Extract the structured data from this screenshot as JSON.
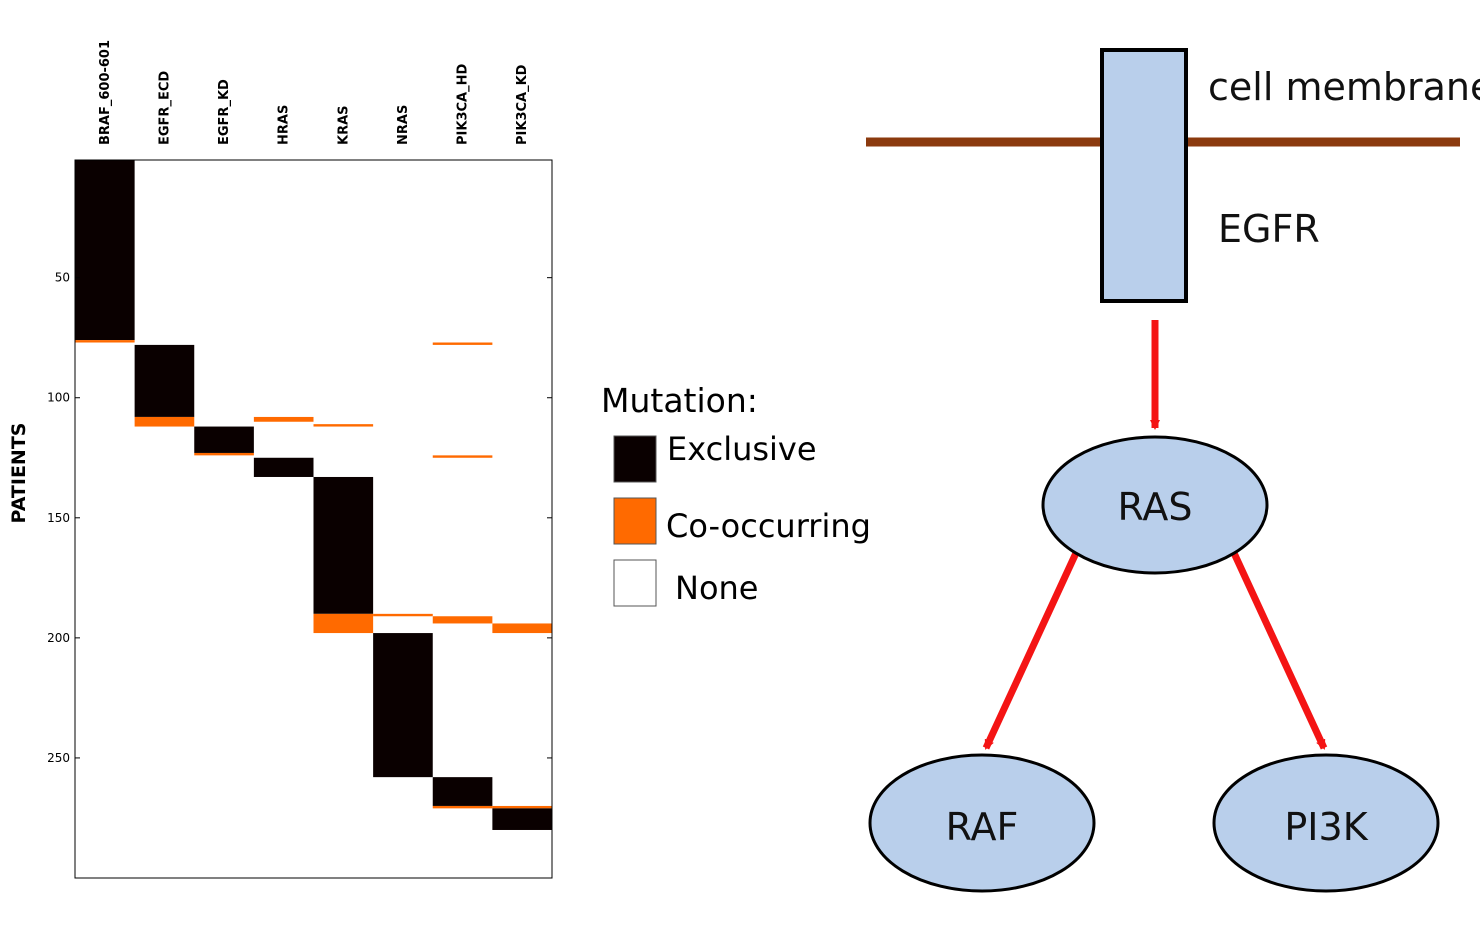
{
  "heatmap": {
    "genes": [
      "BRAF_600-601",
      "EGFR_ECD",
      "EGFR_KD",
      "HRAS",
      "KRAS",
      "NRAS",
      "PIK3CA_HD",
      "PIK3CA_KD"
    ],
    "y_axis_label": "PATIENTS",
    "y_ticks": [
      50,
      100,
      150,
      200,
      250
    ],
    "y_range": [
      1,
      300
    ],
    "colors": {
      "exclusive": "#0a0000",
      "co_occurring": "#ff6a00",
      "none": "#ffffff"
    },
    "segments": [
      {
        "gene": 0,
        "start": 1,
        "end": 76,
        "type": "exclusive"
      },
      {
        "gene": 0,
        "start": 76,
        "end": 77,
        "type": "co_occurring"
      },
      {
        "gene": 1,
        "start": 78,
        "end": 108,
        "type": "exclusive"
      },
      {
        "gene": 1,
        "start": 108,
        "end": 112,
        "type": "co_occurring"
      },
      {
        "gene": 2,
        "start": 112,
        "end": 123,
        "type": "exclusive"
      },
      {
        "gene": 2,
        "start": 123,
        "end": 124,
        "type": "co_occurring"
      },
      {
        "gene": 3,
        "start": 108,
        "end": 110,
        "type": "co_occurring"
      },
      {
        "gene": 3,
        "start": 125,
        "end": 133,
        "type": "exclusive"
      },
      {
        "gene": 4,
        "start": 111,
        "end": 112,
        "type": "co_occurring"
      },
      {
        "gene": 4,
        "start": 133,
        "end": 190,
        "type": "exclusive"
      },
      {
        "gene": 4,
        "start": 190,
        "end": 198,
        "type": "co_occurring"
      },
      {
        "gene": 5,
        "start": 190,
        "end": 191,
        "type": "co_occurring"
      },
      {
        "gene": 5,
        "start": 198,
        "end": 258,
        "type": "exclusive"
      },
      {
        "gene": 6,
        "start": 77,
        "end": 78,
        "type": "co_occurring"
      },
      {
        "gene": 6,
        "start": 124,
        "end": 125,
        "type": "co_occurring"
      },
      {
        "gene": 6,
        "start": 191,
        "end": 194,
        "type": "co_occurring"
      },
      {
        "gene": 6,
        "start": 258,
        "end": 270,
        "type": "exclusive"
      },
      {
        "gene": 6,
        "start": 270,
        "end": 271,
        "type": "co_occurring"
      },
      {
        "gene": 7,
        "start": 194,
        "end": 198,
        "type": "co_occurring"
      },
      {
        "gene": 7,
        "start": 270,
        "end": 271,
        "type": "co_occurring"
      },
      {
        "gene": 7,
        "start": 271,
        "end": 280,
        "type": "exclusive"
      }
    ]
  },
  "legend": {
    "title": "Mutation:",
    "items": [
      {
        "label": "Exclusive",
        "color": "#0a0000"
      },
      {
        "label": "Co-occurring",
        "color": "#ff6a00"
      },
      {
        "label": "None",
        "color": "#ffffff"
      }
    ]
  },
  "pathway": {
    "membrane_label": "cell membrane",
    "receptor_label": "EGFR",
    "nodes": {
      "ras": "RAS",
      "raf": "RAF",
      "pi3k": "PI3K"
    },
    "colors": {
      "membrane": "#8b3a0e",
      "fill": "#b9cfeb",
      "arrow": "#f41414"
    }
  }
}
